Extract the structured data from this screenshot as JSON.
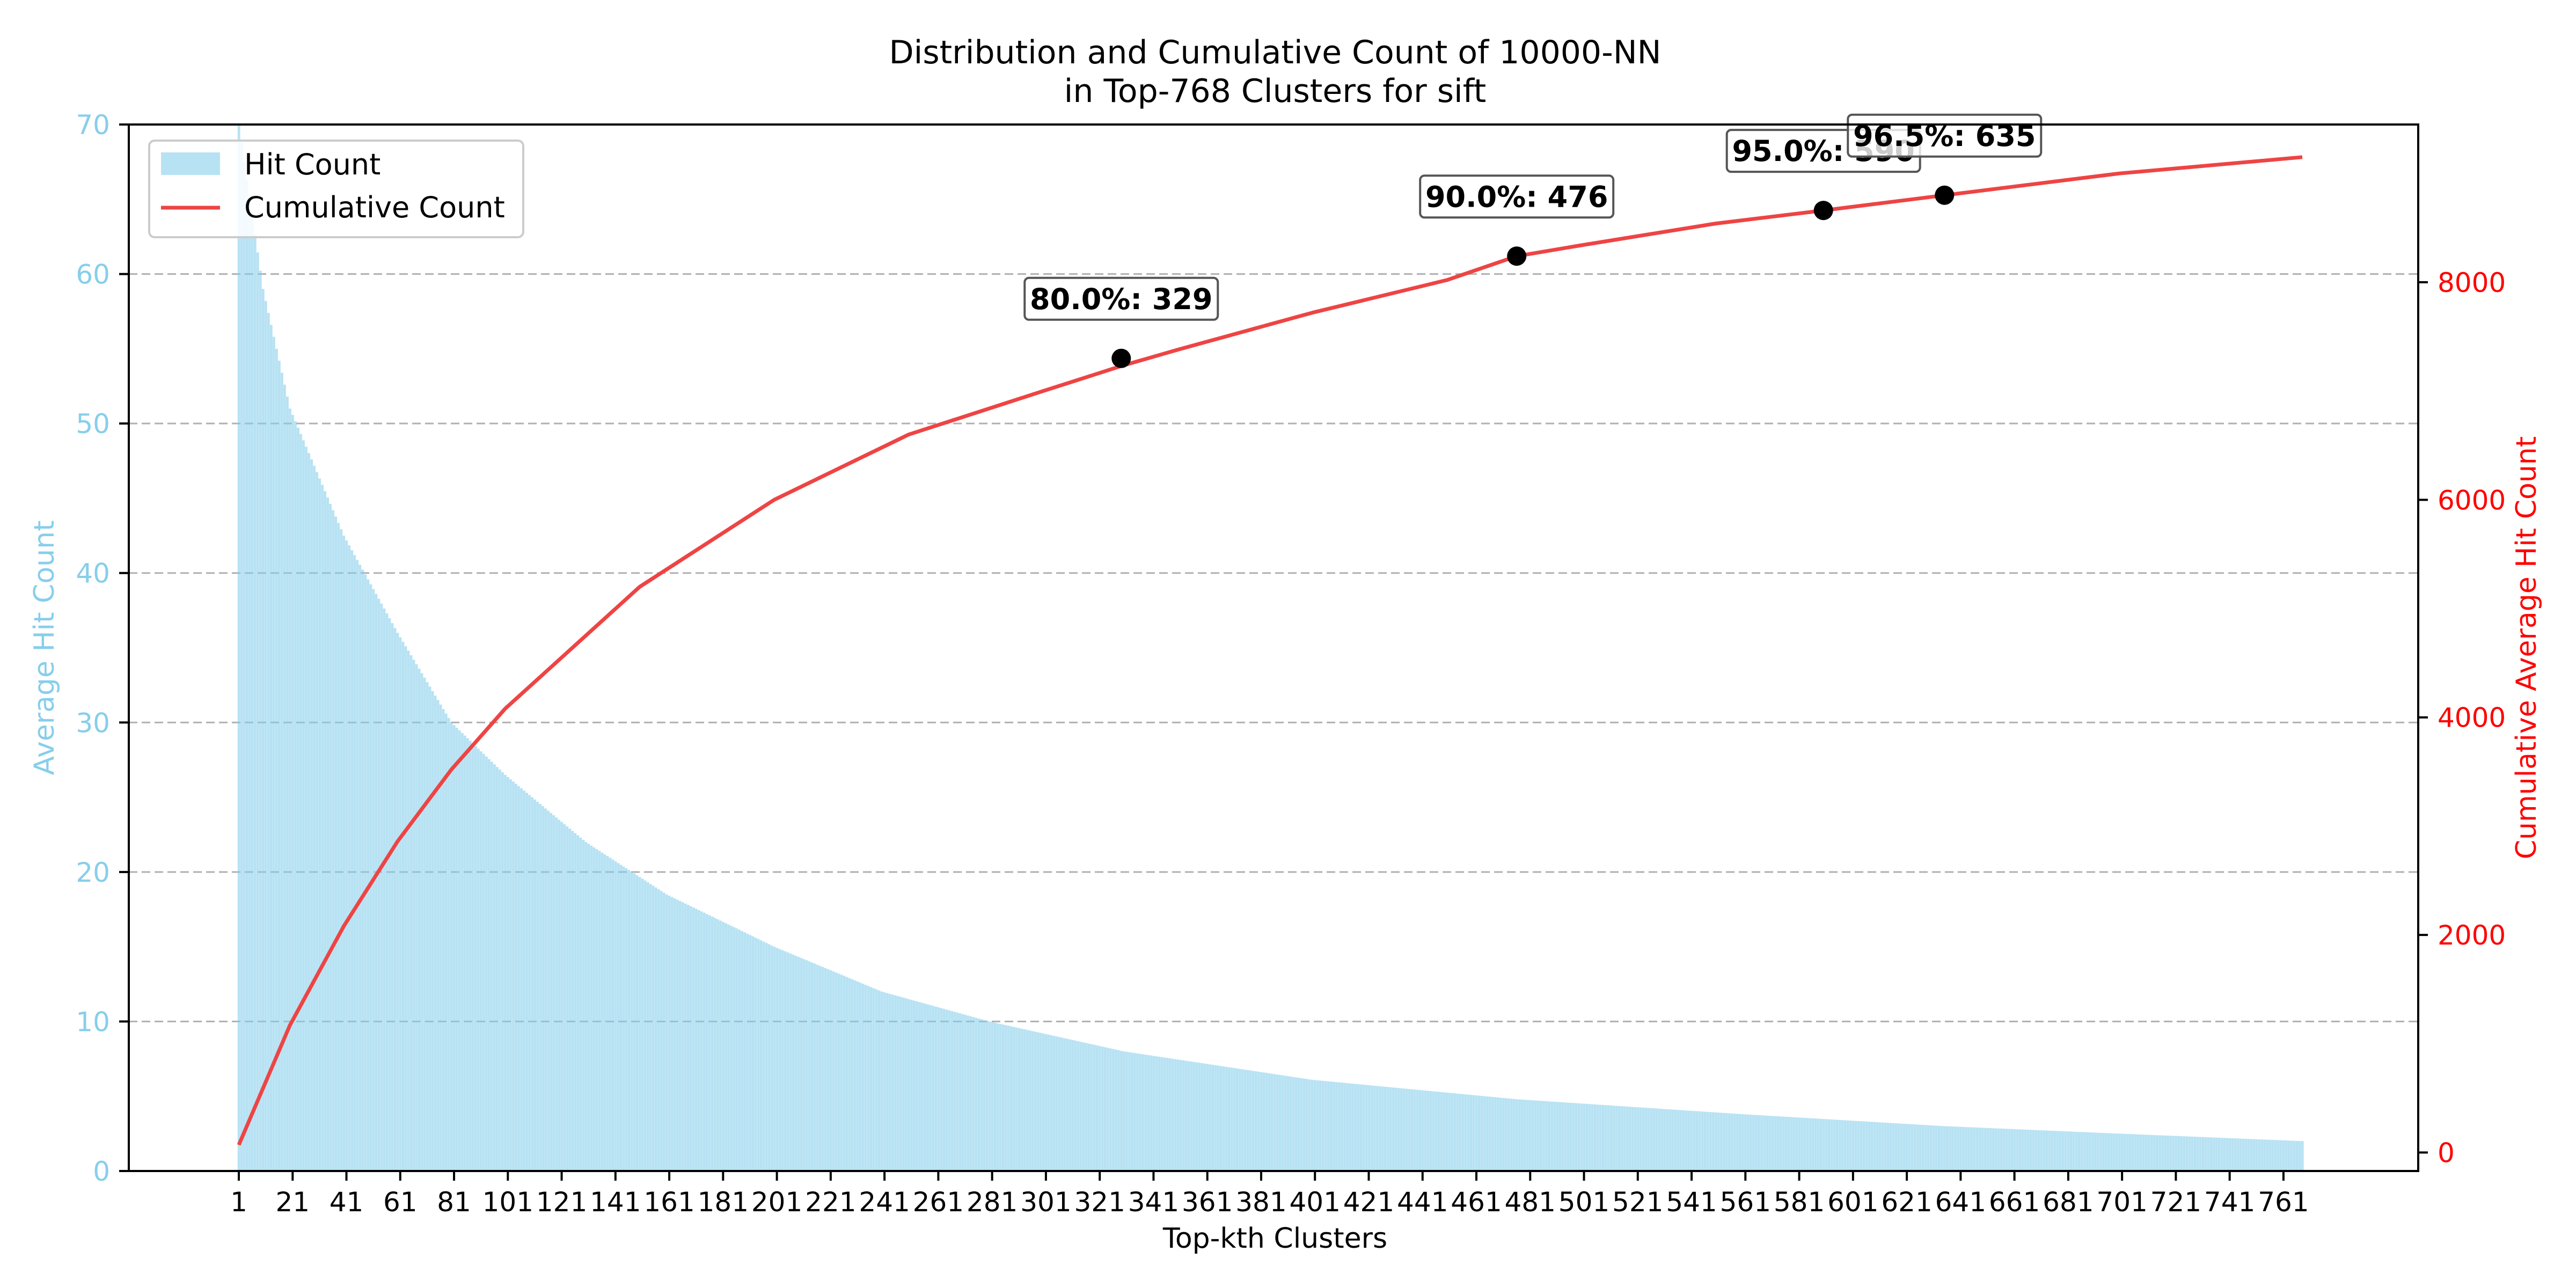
{
  "chart_data": {
    "type": "bar",
    "title": "Distribution and Cumulative Count of 10000-NN\nin Top-768 Clusters for sift",
    "xlabel": "Top-kth Clusters",
    "ylabel": "Average Hit Count",
    "y2label": "Cumulative Average Hit Count",
    "x_tick_labels": [
      "1",
      "21",
      "41",
      "61",
      "81",
      "101",
      "121",
      "141",
      "161",
      "181",
      "201",
      "221",
      "241",
      "261",
      "281",
      "301",
      "321",
      "341",
      "361",
      "381",
      "401",
      "421",
      "441",
      "461",
      "481",
      "501",
      "521",
      "541",
      "561",
      "581",
      "601",
      "621",
      "641",
      "661",
      "681",
      "701",
      "721",
      "741",
      "761"
    ],
    "x_tick_values": [
      1,
      21,
      41,
      61,
      81,
      101,
      121,
      141,
      161,
      181,
      201,
      221,
      241,
      261,
      281,
      301,
      321,
      341,
      361,
      381,
      401,
      421,
      441,
      461,
      481,
      501,
      521,
      541,
      561,
      581,
      601,
      621,
      641,
      661,
      681,
      701,
      721,
      741,
      761
    ],
    "ylim": [
      0,
      70
    ],
    "yticks": [
      0,
      10,
      20,
      30,
      40,
      50,
      60,
      70
    ],
    "y2lim": [
      -170,
      9450
    ],
    "y2ticks": [
      0,
      2000,
      4000,
      6000,
      8000
    ],
    "grid": "y-dashed",
    "legend_position": "top-left",
    "bars": {
      "name": "Hit Count",
      "color": "#87ceeb",
      "x_range": [
        1,
        768
      ],
      "values_sampled": {
        "x": [
          1,
          10,
          20,
          40,
          60,
          80,
          100,
          130,
          160,
          200,
          240,
          280,
          330,
          400,
          476,
          560,
          635,
          700,
          768
        ],
        "y": [
          70,
          59,
          51,
          42.5,
          36,
          30,
          26.5,
          22,
          18.5,
          15,
          12,
          10,
          8,
          6.1,
          4.8,
          3.8,
          3,
          2.5,
          2
        ]
      }
    },
    "series": [
      {
        "name": "Cumulative Count",
        "color": "#ee4444",
        "x": [
          1,
          20,
          40,
          60,
          80,
          100,
          150,
          200,
          250,
          300,
          329,
          350,
          400,
          450,
          476,
          500,
          550,
          590,
          635,
          700,
          768
        ],
        "y": [
          70,
          1170,
          2080,
          2860,
          3520,
          4080,
          5200,
          6000,
          6600,
          7000,
          7230,
          7380,
          7720,
          8020,
          8240,
          8340,
          8540,
          8660,
          8800,
          9000,
          9150
        ]
      }
    ],
    "annotations": [
      {
        "label": "80.0%: 329",
        "x": 329,
        "y": 7300
      },
      {
        "label": "90.0%: 476",
        "x": 476,
        "y": 8240
      },
      {
        "label": "95.0%: 590",
        "x": 590,
        "y": 8660
      },
      {
        "label": "96.5%: 635",
        "x": 635,
        "y": 8800
      }
    ],
    "axis_colors": {
      "left": "#87ceeb",
      "right": "#ff0000"
    }
  }
}
